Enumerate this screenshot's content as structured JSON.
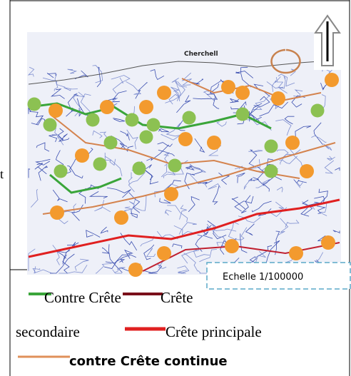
{
  "map": {
    "place_label": "Cherchell",
    "scale_label": "Echelle 1/100000"
  },
  "margin_text": "t",
  "legend": [
    {
      "label": "Contre Crête"
    },
    {
      "label_parts": [
        "Crête",
        "secondaire"
      ]
    },
    {
      "label": "Crête principale"
    },
    {
      "label": "contre Crête continue"
    }
  ]
}
